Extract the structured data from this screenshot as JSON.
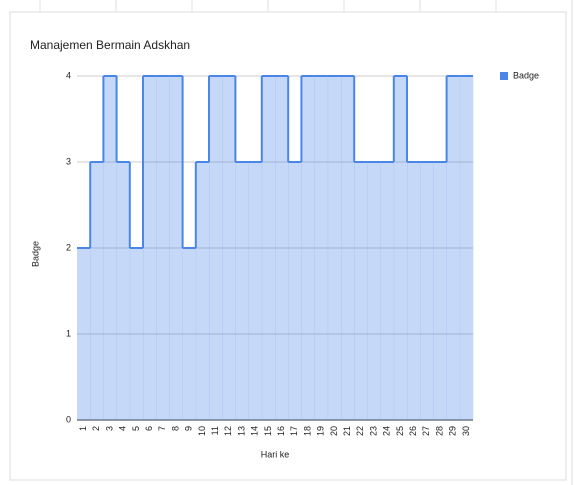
{
  "chart_data": {
    "type": "stepped-area",
    "title": "Manajemen Bermain Adskhan",
    "x_label": "Hari ke",
    "y_label": "Badge",
    "categories": [
      "1",
      "2",
      "3",
      "4",
      "5",
      "6",
      "7",
      "8",
      "9",
      "10",
      "11",
      "12",
      "13",
      "14",
      "15",
      "16",
      "17",
      "18",
      "19",
      "20",
      "21",
      "22",
      "23",
      "24",
      "25",
      "26",
      "27",
      "28",
      "29",
      "30"
    ],
    "series": [
      {
        "name": "Badge",
        "color": "#4a86e8",
        "values": [
          2,
          3,
          4,
          3,
          2,
          4,
          4,
          4,
          2,
          3,
          4,
          4,
          3,
          3,
          4,
          4,
          3,
          4,
          4,
          4,
          4,
          3,
          3,
          3,
          4,
          3,
          3,
          3,
          4,
          4
        ]
      }
    ],
    "ylim": [
      0,
      4
    ],
    "yticks": [
      0,
      1,
      2,
      3,
      4
    ],
    "grid": true,
    "legend": "right"
  }
}
